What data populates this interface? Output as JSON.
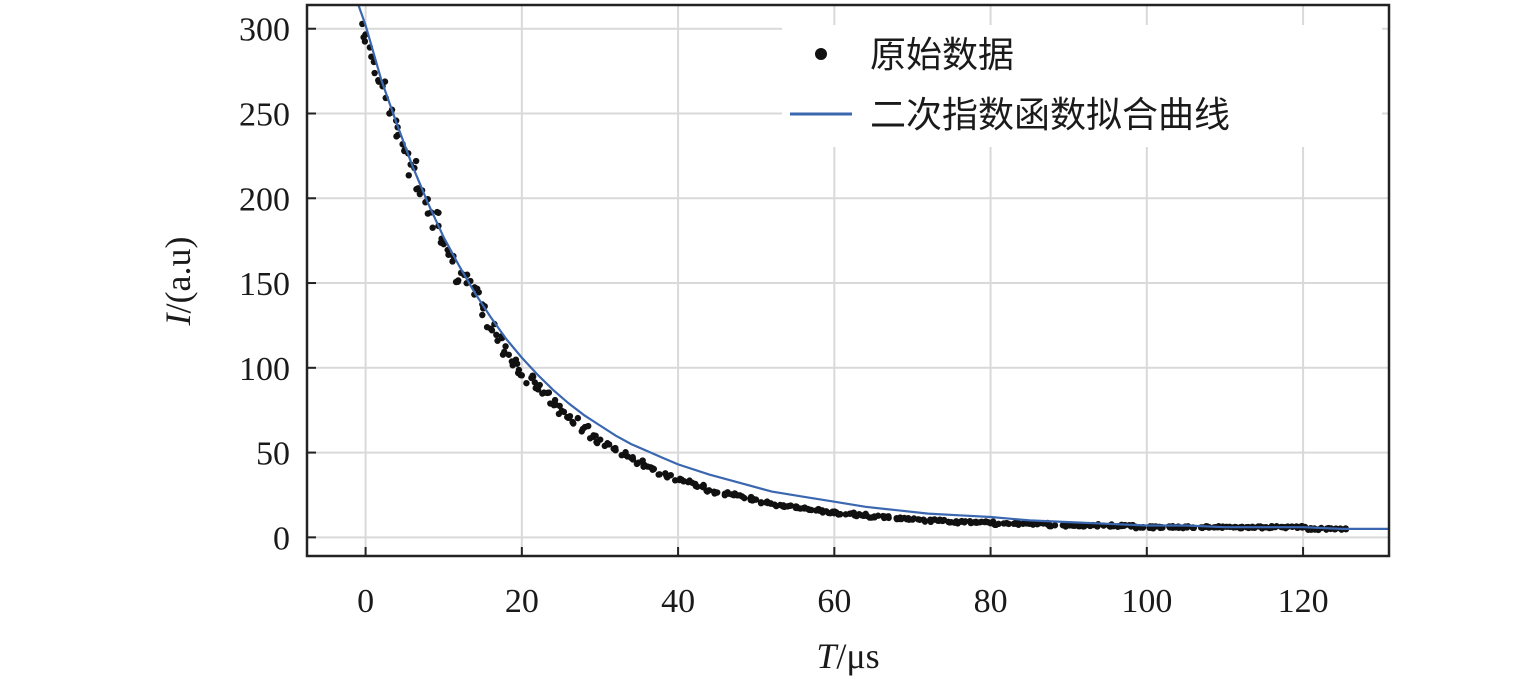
{
  "chart_data": {
    "type": "scatter",
    "title": "",
    "xlabel": {
      "var": "T",
      "unit": "/μs"
    },
    "ylabel": {
      "var": "I",
      "unit": "/(a.u)"
    },
    "xlim": [
      -7.5,
      131
    ],
    "ylim": [
      -11,
      314
    ],
    "xticks": [
      0,
      20,
      40,
      60,
      80,
      100,
      120
    ],
    "yticks": [
      0,
      50,
      100,
      150,
      200,
      250,
      300
    ],
    "grid": true,
    "legend": {
      "placement": "top-right"
    },
    "colors": {
      "data": "#111111",
      "fit": "#3a67b0"
    },
    "series": [
      {
        "name": "原始数据",
        "kind": "scatter",
        "x": [
          0,
          1,
          2,
          3,
          4,
          5,
          6,
          7,
          8,
          9,
          10,
          11,
          12,
          13,
          14,
          15,
          16,
          17,
          18,
          19,
          20,
          21,
          22,
          23,
          24,
          25,
          26,
          27,
          28,
          29,
          30,
          31,
          32,
          33,
          34,
          35,
          36,
          37,
          38,
          39,
          40,
          41,
          42,
          43,
          44,
          45,
          46,
          47,
          48,
          49,
          50,
          51,
          52,
          53,
          54,
          55,
          56,
          57,
          58,
          59,
          60,
          61,
          62,
          63,
          64,
          65,
          66,
          67,
          68,
          69,
          70,
          71,
          72,
          73,
          74,
          75,
          76,
          77,
          78,
          79,
          80,
          81,
          82,
          83,
          84,
          85,
          86,
          87,
          88,
          89,
          90,
          91,
          92,
          93,
          94,
          95,
          96,
          97,
          98,
          99,
          100,
          101,
          102,
          103,
          104,
          105,
          106,
          107,
          108,
          109,
          110,
          111,
          112,
          113,
          114,
          115,
          116,
          117,
          118,
          119,
          120,
          121,
          122,
          123,
          124,
          125
        ],
        "y": [
          296,
          281,
          270,
          253,
          243,
          229,
          216,
          207,
          195,
          188,
          178,
          167,
          155,
          151,
          143,
          134,
          125,
          118,
          110,
          105,
          97,
          93,
          89,
          85,
          79,
          75,
          72,
          68,
          64,
          60,
          57,
          55,
          52,
          50,
          47,
          44,
          42,
          40,
          38,
          36,
          34,
          33,
          31,
          30,
          28,
          27,
          26,
          25,
          24,
          23,
          22,
          21,
          20,
          19,
          18,
          18,
          17,
          16,
          16,
          15,
          15,
          14,
          14,
          13,
          13,
          12,
          12,
          12,
          11,
          11,
          11,
          10,
          10,
          10,
          10,
          9,
          9,
          9,
          9,
          9,
          9,
          8,
          8,
          8,
          8,
          8,
          8,
          8,
          7,
          7,
          7,
          7,
          7,
          7,
          7,
          7,
          7,
          7,
          7,
          6,
          6,
          6,
          6,
          6,
          6,
          6,
          6,
          6,
          6,
          6,
          6,
          6,
          6,
          6,
          6,
          6,
          6,
          6,
          6,
          6,
          6,
          5,
          5,
          5,
          5,
          5
        ]
      },
      {
        "name": "二次指数函数拟合曲线",
        "kind": "line",
        "x": [
          -1,
          0,
          2,
          4,
          6,
          8,
          10,
          12,
          14,
          16,
          18,
          20,
          22,
          24,
          26,
          28,
          30,
          32,
          34,
          36,
          38,
          40,
          44,
          48,
          52,
          56,
          60,
          64,
          68,
          72,
          76,
          80,
          85,
          90,
          95,
          100,
          105,
          110,
          115,
          120,
          125,
          131
        ],
        "y": [
          315,
          302,
          270,
          244,
          219,
          197,
          177,
          160,
          144,
          130,
          117,
          106,
          96,
          87,
          79,
          72,
          66,
          60,
          55,
          51,
          47,
          43,
          37,
          32,
          27,
          24,
          21,
          18,
          16,
          14,
          13,
          12,
          10,
          9,
          8,
          7,
          7,
          6,
          6,
          6,
          5,
          5
        ]
      }
    ]
  }
}
